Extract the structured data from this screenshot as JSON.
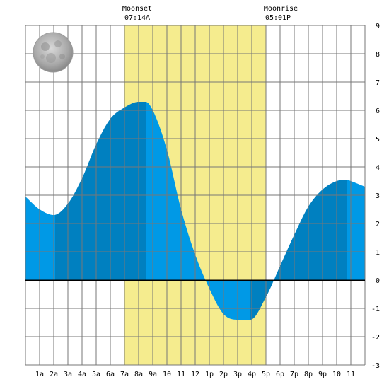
{
  "chart_data": {
    "type": "area",
    "title": "",
    "xlabel": "",
    "ylabel": "",
    "x_ticks": [
      1,
      2,
      3,
      4,
      5,
      6,
      7,
      8,
      9,
      10,
      11,
      12,
      13,
      14,
      15,
      16,
      17,
      18,
      19,
      20,
      21,
      22,
      23
    ],
    "x_tick_labels": [
      "1a",
      "2a",
      "3a",
      "4a",
      "5a",
      "6a",
      "7a",
      "8a",
      "9a",
      "10",
      "11",
      "12",
      "1p",
      "2p",
      "3p",
      "4p",
      "5p",
      "6p",
      "7p",
      "8p",
      "9p",
      "10",
      "11"
    ],
    "xlim": [
      0,
      24
    ],
    "ylim": [
      -3,
      9
    ],
    "y_ticks": [
      -3,
      -2,
      -1,
      0,
      1,
      2,
      3,
      4,
      5,
      6,
      7,
      8,
      9
    ],
    "y_tick_labels": [
      "-3",
      "-2",
      "-1",
      "0",
      "1",
      "2",
      "3",
      "4",
      "5",
      "6",
      "7",
      "8",
      "9"
    ],
    "grid": true,
    "moon": {
      "phase_icon": "full-moon-icon",
      "moonset_label": "Moonset",
      "moonset_time": "07:14A",
      "moonset_hour": 7.0,
      "moonrise_label": "Moonrise",
      "moonrise_time": "05:01P",
      "moonrise_hour": 17.0
    },
    "tide": {
      "x": [
        0,
        1,
        2,
        3,
        4,
        5,
        6,
        7,
        8,
        8.5,
        9,
        10,
        11,
        12,
        13,
        14,
        15,
        15.9,
        17,
        18,
        19,
        20,
        21,
        22,
        22.7,
        23,
        24
      ],
      "y": [
        2.95,
        2.5,
        2.3,
        2.7,
        3.6,
        4.8,
        5.7,
        6.1,
        6.3,
        6.3,
        6.0,
        4.6,
        2.5,
        0.9,
        -0.3,
        -1.2,
        -1.4,
        -1.4,
        -0.6,
        0.5,
        1.6,
        2.6,
        3.2,
        3.5,
        3.55,
        3.5,
        3.3
      ],
      "high_low_hours": [
        2.1,
        8.5,
        15.9,
        22.7
      ]
    },
    "colors": {
      "tide_light": "#0099e6",
      "tide_dark": "#0080c0",
      "moon_band": "#f5ec8e",
      "grid": "#777777",
      "zero_line": "#000000"
    }
  }
}
